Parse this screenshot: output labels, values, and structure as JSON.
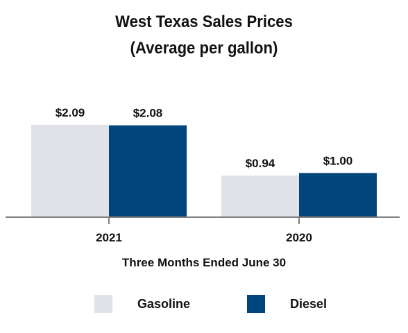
{
  "chart_data": {
    "type": "bar",
    "title": "West Texas Sales Prices",
    "subtitle": "(Average per gallon)",
    "categories": [
      "2021",
      "2020"
    ],
    "series": [
      {
        "name": "Gasoline",
        "values": [
          2.09,
          0.94
        ],
        "labels": [
          "$2.09",
          "$0.94"
        ],
        "color": "#e1e2e7"
      },
      {
        "name": "Diesel",
        "values": [
          2.08,
          1.0
        ],
        "labels": [
          "$2.08",
          "$1.00"
        ],
        "color": "#00457b"
      }
    ],
    "xlabel": "Three Months Ended June 30",
    "ylabel": "",
    "ylim": [
      0,
      2.5
    ],
    "grid": false,
    "legend_position": "bottom",
    "axis_color": "#7f7f7f"
  }
}
